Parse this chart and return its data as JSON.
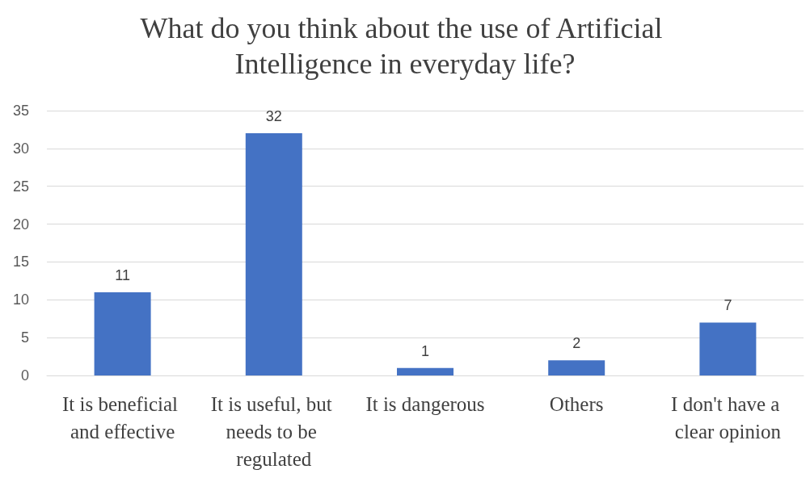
{
  "chart_data": {
    "type": "bar",
    "title": "What do you think about the use of Artificial Intelligence in everyday life?",
    "categories": [
      "It is beneficial and effective",
      "It is useful, but needs to be regulated",
      "It is dangerous",
      "Others",
      "I don't have a clear opinion"
    ],
    "values": [
      11,
      32,
      1,
      2,
      7
    ],
    "color": "#4472c4",
    "ylim": [
      0,
      35
    ],
    "yticks": [
      0,
      5,
      10,
      15,
      20,
      25,
      30,
      35
    ],
    "grid": "y",
    "data_labels": true
  }
}
